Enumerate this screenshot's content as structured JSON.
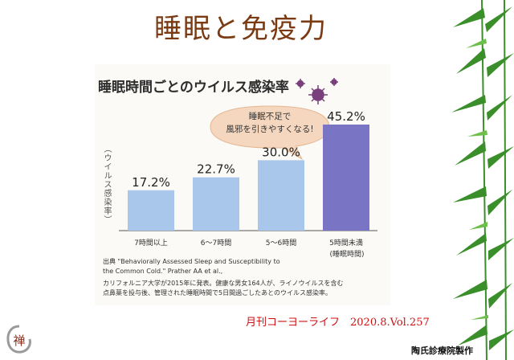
{
  "slide": {
    "title": "睡眠と免疫力",
    "magazine_credit": "月刊コーヨーライフ　2020.8.Vol.257",
    "maker": "陶氏診療院製作",
    "logo_char": "禅"
  },
  "colors": {
    "title": "#7a3a12",
    "bar_light": "#a9c7ea",
    "bar_dark": "#7a74c4",
    "virus": "#7a3f7d",
    "credit": "#cc1111",
    "bamboo": "#3a8f2a"
  },
  "bubble": {
    "line1": "睡眠不足で",
    "line2": "風邪を引きやすくなる!"
  },
  "source_lines": [
    "出典 \"Behaviorally Assessed Sleep and Susceptibility to",
    "the Common Cold.\" Prather AA et al.,",
    "カリフォルニア大学が2015年に発表。健康な男女164人が、ライノウイルスを含む",
    "点鼻薬を投与後、管理された睡眠時間で5日間過ごしたあとのウイルス感染率。"
  ],
  "chart_data": {
    "type": "bar",
    "title": "睡眠時間ごとのウイルス感染率",
    "ylabel": "（ウイルス感染率）",
    "xlabel": "(睡眠時間)",
    "categories": [
      "7時間以上",
      "6〜7時間",
      "5〜6時間",
      "5時間未満"
    ],
    "values": [
      17.2,
      22.7,
      30.0,
      45.2
    ],
    "value_labels": [
      "17.2%",
      "22.7%",
      "30.0%",
      "45.2%"
    ],
    "highlight_index": 3,
    "ylim": [
      0,
      50
    ],
    "grid": false
  }
}
